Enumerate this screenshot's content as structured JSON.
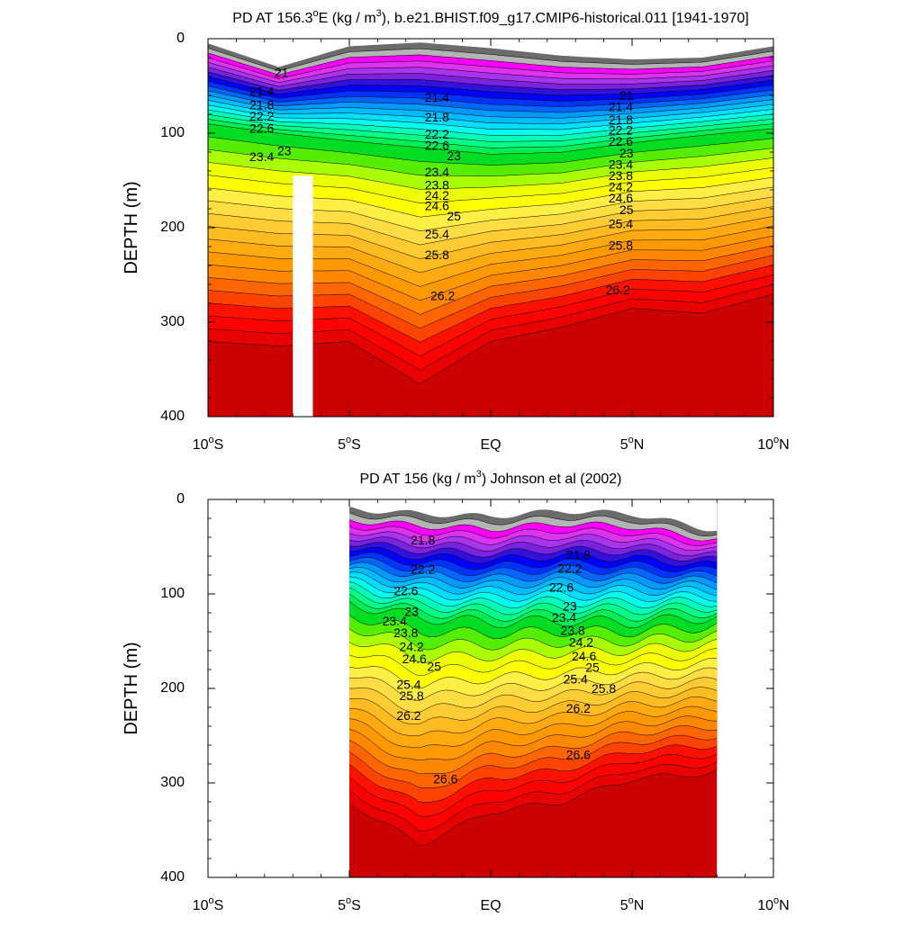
{
  "chart_data": [
    {
      "type": "heatmap",
      "title": "PD AT 156.3ºE (kg / m³), b.e21.BHIST.f09_g17.CMIP6-historical.011 [1941-1970]",
      "title_parts": {
        "prefix": "PD AT 156.3",
        "degree": "o",
        "mid": "E (kg / m",
        "sup": "3",
        "suffix": "), b.e21.BHIST.f09_g17.CMIP6-historical.011 [1941-1970]"
      },
      "xlabel": "",
      "ylabel": "DEPTH (m)",
      "xlim": [
        -10,
        10
      ],
      "ylim": [
        0,
        400
      ],
      "y_reversed": true,
      "y_ticks": [
        0,
        100,
        200,
        300,
        400
      ],
      "x_ticks": [
        {
          "value": -10,
          "label": "10",
          "deg": "o",
          "hemi": "S"
        },
        {
          "value": -5,
          "label": "5",
          "deg": "o",
          "hemi": "S"
        },
        {
          "value": 0,
          "label": "EQ",
          "deg": "",
          "hemi": ""
        },
        {
          "value": 5,
          "label": "5",
          "deg": "o",
          "hemi": "N"
        },
        {
          "value": 10,
          "label": "10",
          "deg": "o",
          "hemi": "N"
        }
      ],
      "contour_interval": 0.2,
      "contour_labels": [
        {
          "text": "21",
          "x": -7.4,
          "y": 37
        },
        {
          "text": "21.4",
          "x": -8.1,
          "y": 57
        },
        {
          "text": "21.8",
          "x": -8.1,
          "y": 71
        },
        {
          "text": "22.2",
          "x": -8.1,
          "y": 83
        },
        {
          "text": "22.6",
          "x": -8.1,
          "y": 96
        },
        {
          "text": "23",
          "x": -7.3,
          "y": 120
        },
        {
          "text": "23.4",
          "x": -8.1,
          "y": 126
        },
        {
          "text": "21.4",
          "x": -1.9,
          "y": 63
        },
        {
          "text": "21.8",
          "x": -1.9,
          "y": 84
        },
        {
          "text": "22.2",
          "x": -1.9,
          "y": 102
        },
        {
          "text": "22.6",
          "x": -1.9,
          "y": 114
        },
        {
          "text": "23",
          "x": -1.3,
          "y": 125
        },
        {
          "text": "23.4",
          "x": -1.9,
          "y": 142
        },
        {
          "text": "23.8",
          "x": -1.9,
          "y": 156
        },
        {
          "text": "24.2",
          "x": -1.9,
          "y": 167
        },
        {
          "text": "24.6",
          "x": -1.9,
          "y": 178
        },
        {
          "text": "25",
          "x": -1.3,
          "y": 189
        },
        {
          "text": "25.4",
          "x": -1.9,
          "y": 208
        },
        {
          "text": "25.8",
          "x": -1.9,
          "y": 230
        },
        {
          "text": "26.2",
          "x": -1.7,
          "y": 273
        },
        {
          "text": "21",
          "x": 4.8,
          "y": 61
        },
        {
          "text": "21.4",
          "x": 4.6,
          "y": 73
        },
        {
          "text": "21.8",
          "x": 4.6,
          "y": 87
        },
        {
          "text": "22.2",
          "x": 4.6,
          "y": 98
        },
        {
          "text": "22.6",
          "x": 4.6,
          "y": 110
        },
        {
          "text": "23",
          "x": 4.8,
          "y": 122
        },
        {
          "text": "23.4",
          "x": 4.6,
          "y": 134
        },
        {
          "text": "23.8",
          "x": 4.6,
          "y": 146
        },
        {
          "text": "24.2",
          "x": 4.6,
          "y": 158
        },
        {
          "text": "24.6",
          "x": 4.6,
          "y": 170
        },
        {
          "text": "25",
          "x": 4.8,
          "y": 182
        },
        {
          "text": "25.4",
          "x": 4.6,
          "y": 197
        },
        {
          "text": "25.8",
          "x": 4.6,
          "y": 220
        },
        {
          "text": "26.2",
          "x": 4.5,
          "y": 267
        }
      ]
    },
    {
      "type": "heatmap",
      "title": "PD AT 156 (kg / m³) Johnson et al (2002)",
      "title_parts": {
        "prefix": "PD AT 156 (kg / m",
        "degree": "",
        "mid": "",
        "sup": "3",
        "suffix": ") Johnson et al (2002)"
      },
      "xlabel": "",
      "ylabel": "DEPTH (m)",
      "xlim": [
        -10,
        10
      ],
      "ylim": [
        0,
        400
      ],
      "y_reversed": true,
      "y_ticks": [
        0,
        100,
        200,
        300,
        400
      ],
      "x_ticks": [
        {
          "value": -10,
          "label": "10",
          "deg": "o",
          "hemi": "S"
        },
        {
          "value": -5,
          "label": "5",
          "deg": "o",
          "hemi": "S"
        },
        {
          "value": 0,
          "label": "EQ",
          "deg": "",
          "hemi": ""
        },
        {
          "value": 5,
          "label": "5",
          "deg": "o",
          "hemi": "N"
        },
        {
          "value": 10,
          "label": "10",
          "deg": "o",
          "hemi": "N"
        }
      ],
      "data_extent_x": [
        -5,
        8
      ],
      "contour_interval": 0.2,
      "contour_labels": [
        {
          "text": "21.8",
          "x": -2.4,
          "y": 44
        },
        {
          "text": "22.2",
          "x": -2.4,
          "y": 75
        },
        {
          "text": "22.6",
          "x": -3.0,
          "y": 98
        },
        {
          "text": "23",
          "x": -2.8,
          "y": 120
        },
        {
          "text": "23.4",
          "x": -3.4,
          "y": 130
        },
        {
          "text": "23.8",
          "x": -3.0,
          "y": 142
        },
        {
          "text": "24.2",
          "x": -2.8,
          "y": 157
        },
        {
          "text": "24.6",
          "x": -2.7,
          "y": 170
        },
        {
          "text": "25",
          "x": -2.0,
          "y": 178
        },
        {
          "text": "25.4",
          "x": -2.9,
          "y": 197
        },
        {
          "text": "25.8",
          "x": -2.8,
          "y": 209
        },
        {
          "text": "26.2",
          "x": -2.9,
          "y": 230
        },
        {
          "text": "26.6",
          "x": -1.6,
          "y": 297
        },
        {
          "text": "21.8",
          "x": 3.1,
          "y": 60
        },
        {
          "text": "22.2",
          "x": 2.8,
          "y": 74
        },
        {
          "text": "22.6",
          "x": 2.5,
          "y": 94
        },
        {
          "text": "23",
          "x": 2.8,
          "y": 114
        },
        {
          "text": "23.4",
          "x": 2.6,
          "y": 126
        },
        {
          "text": "23.8",
          "x": 2.9,
          "y": 140
        },
        {
          "text": "24.2",
          "x": 3.2,
          "y": 152
        },
        {
          "text": "24.6",
          "x": 3.3,
          "y": 167
        },
        {
          "text": "25",
          "x": 3.6,
          "y": 179
        },
        {
          "text": "25.4",
          "x": 3.0,
          "y": 191
        },
        {
          "text": "25.8",
          "x": 4.0,
          "y": 201
        },
        {
          "text": "26.2",
          "x": 3.1,
          "y": 222
        },
        {
          "text": "26.6",
          "x": 3.1,
          "y": 271
        }
      ]
    }
  ]
}
